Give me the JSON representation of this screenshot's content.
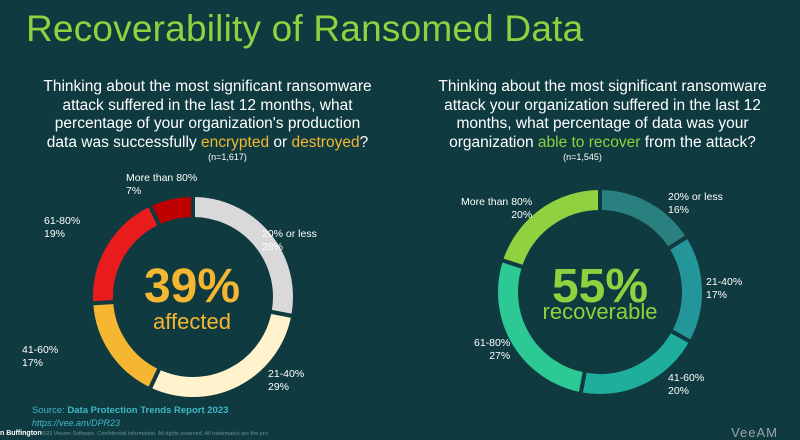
{
  "title": "Recoverability of Ransomed Data",
  "left": {
    "q_part1": "Thinking about the most significant ransomware attack suffered in the last 12 months, what percentage of your organization's production data was successfully ",
    "hl1": "encrypted",
    "q_mid": " or ",
    "hl2": "destroyed",
    "q_end": "?",
    "n": "(n=1,617)",
    "center_value": "39%",
    "center_label": "affected"
  },
  "right": {
    "q_part1": "Thinking about the most significant ransomware attack your organization suffered in the last 12 months, what percentage of data was your organization ",
    "hl1": "able to recover",
    "q_end": " from the attack?",
    "n": "(n=1,545)",
    "center_value": "55%",
    "center_label": "recoverable"
  },
  "chart_data": [
    {
      "type": "pie",
      "categories": [
        "20% or less",
        "21-40%",
        "41-60%",
        "61-80%",
        "More than 80%"
      ],
      "values": [
        28,
        29,
        17,
        19,
        7
      ],
      "colors": [
        "#d9d9d9",
        "#fff2cc",
        "#f5b731",
        "#e81c1c",
        "#c00000"
      ]
    },
    {
      "type": "pie",
      "categories": [
        "20% or less",
        "21-40%",
        "41-60%",
        "61-80%",
        "More than 80%"
      ],
      "values": [
        16,
        17,
        20,
        27,
        20
      ],
      "colors": [
        "#2a7f7f",
        "#24969a",
        "#1fae9c",
        "#2cc994",
        "#8fd13f"
      ]
    }
  ],
  "source": {
    "prefix": "Source:",
    "report": "Data Protection Trends Report 2023",
    "url": "https://vee.am/DPR23"
  },
  "presenter": "n Buffington",
  "footer": "2023 Veeam Software. Confidential information. All rights reserved. All trademarks are the pro",
  "logo": "VeeAM"
}
